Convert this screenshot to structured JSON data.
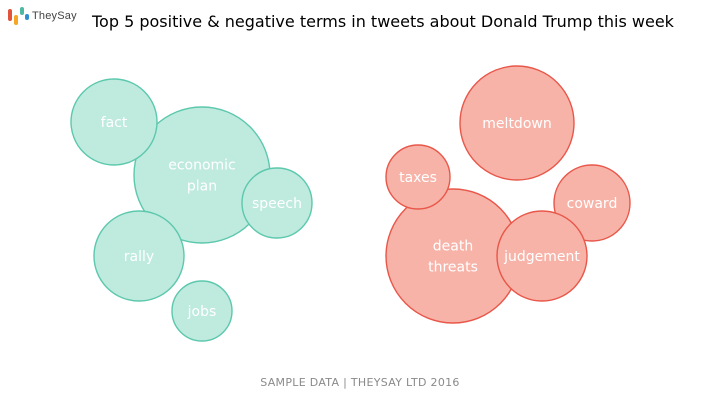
{
  "brand": {
    "name": "TheySay",
    "logo_colors": [
      "#e2533b",
      "#f5a623",
      "#4fb8a3",
      "#2e8fd0"
    ]
  },
  "title": "Top 5 positive & negative terms in tweets about Donald Trump this week",
  "footer": "SAMPLE DATA | THEYSAY LTD 2016",
  "chart_data": {
    "type": "bubble",
    "title": "Top 5 positive & negative terms in tweets about Donald Trump this week",
    "series": [
      {
        "group": "positive",
        "fill": "#bfeade",
        "stroke": "#5cc8ad",
        "terms": [
          {
            "label": [
              "economic",
              "plan"
            ]
          },
          {
            "label": [
              "fact"
            ]
          },
          {
            "label": [
              "speech"
            ]
          },
          {
            "label": [
              "rally"
            ]
          },
          {
            "label": [
              "jobs"
            ]
          }
        ]
      },
      {
        "group": "negative",
        "fill": "#f7b3a8",
        "stroke": "#e8574a",
        "terms": [
          {
            "label": [
              "death",
              "threats"
            ]
          },
          {
            "label": [
              "meltdown"
            ]
          },
          {
            "label": [
              "coward"
            ]
          },
          {
            "label": [
              "judgement"
            ]
          },
          {
            "label": [
              "taxes"
            ]
          }
        ]
      }
    ]
  }
}
